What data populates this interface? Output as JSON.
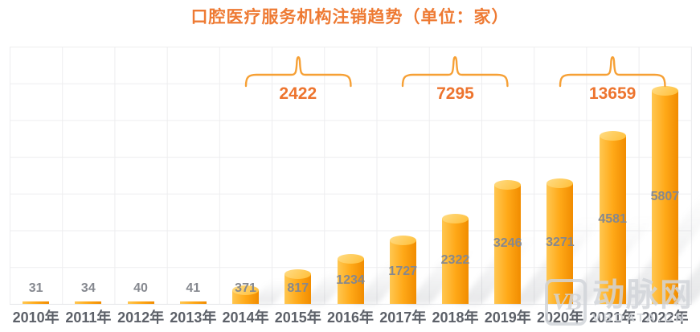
{
  "title": "口腔医疗服务机构注销趋势（单位：家）",
  "watermark": {
    "logo": "VB",
    "name": "动脉网",
    "domain": "VBDATA.CN"
  },
  "chart_data": {
    "type": "bar",
    "title": "口腔医疗服务机构注销趋势（单位：家）",
    "unit": "家",
    "categories": [
      "2010年",
      "2011年",
      "2012年",
      "2013年",
      "2014年",
      "2015年",
      "2016年",
      "2017年",
      "2018年",
      "2019年",
      "2020年",
      "2021年",
      "2022年"
    ],
    "values": [
      31,
      34,
      40,
      41,
      371,
      817,
      1234,
      1727,
      2322,
      3246,
      3271,
      4581,
      5807
    ],
    "groups": [
      {
        "label": "2422",
        "from_index": 4,
        "to_index": 6
      },
      {
        "label": "7295",
        "from_index": 7,
        "to_index": 9
      },
      {
        "label": "13659",
        "from_index": 10,
        "to_index": 12
      }
    ],
    "ylim": [
      0,
      7000
    ],
    "grid": true,
    "legend": "none",
    "colors": {
      "title": "#EE7A33",
      "group_label": "#ED742E",
      "brace": "#F6A035",
      "bar_left": "#FFC751",
      "bar_mid": "#FFA918",
      "bar_right": "#F18C00",
      "bar_top_light": "#FFDC85",
      "bar_top_dark": "#FFBE37",
      "value_label": "#85888F",
      "axis_label": "#5C6068",
      "watermark": "#D2D5DA"
    }
  }
}
